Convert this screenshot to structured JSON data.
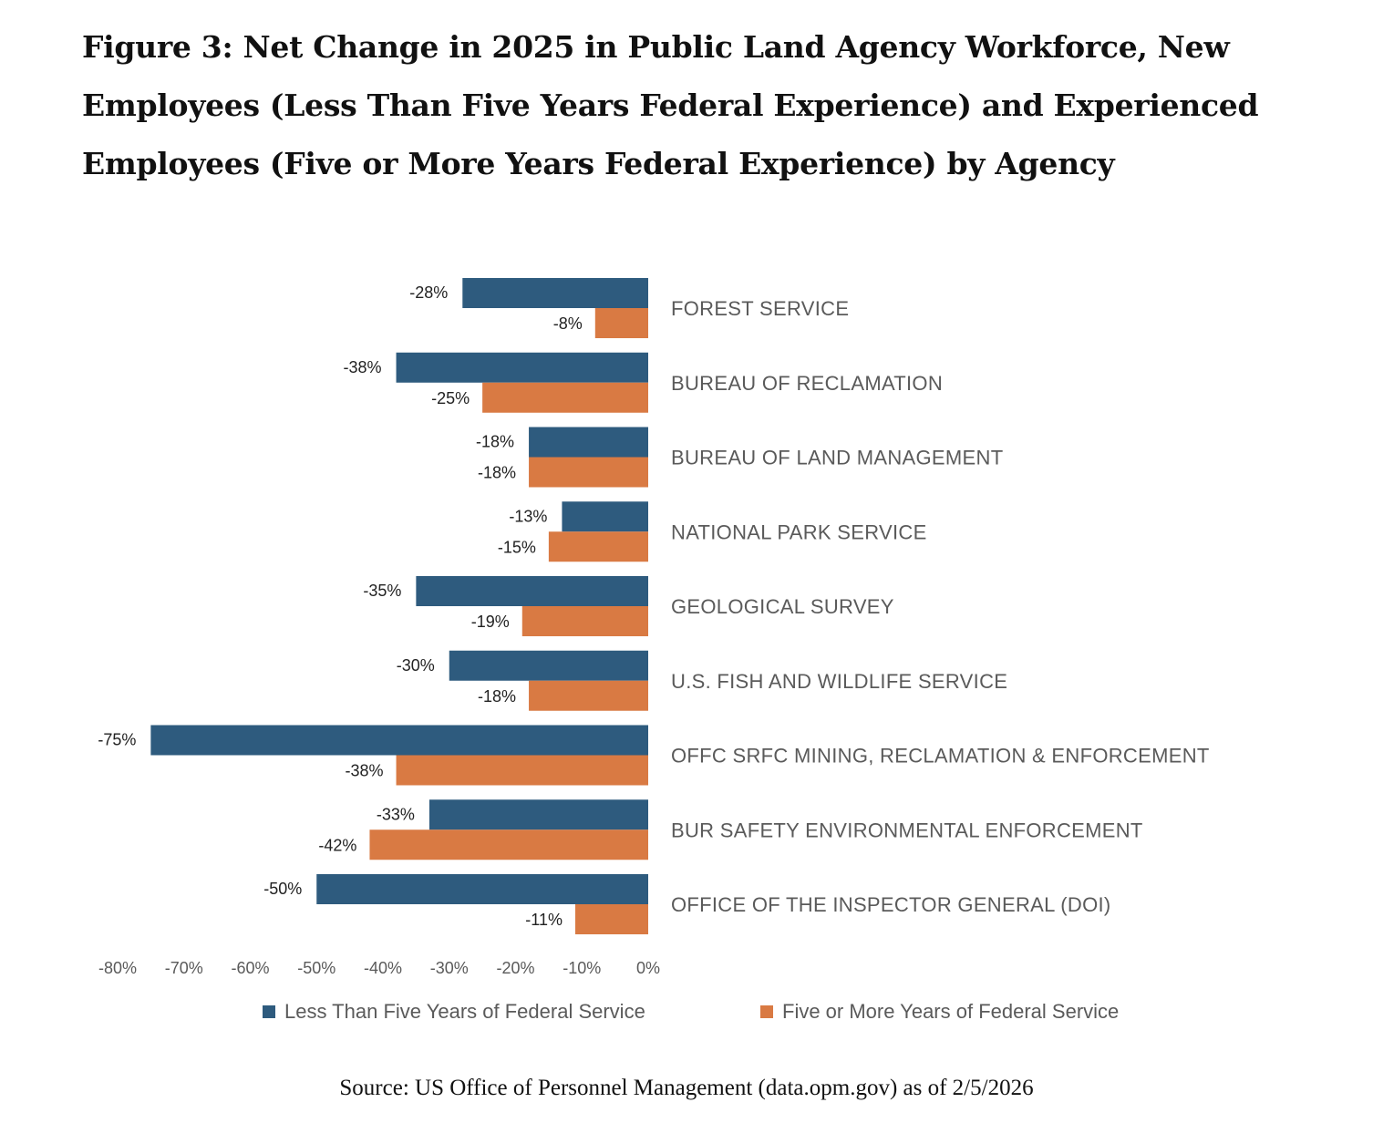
{
  "title": "Figure 3: Net Change in 2025 in Public Land Agency Workforce, New Employees (Less Than Five Years Federal Experience) and Experienced Employees (Five or More Years Federal Experience) by Agency",
  "source": "Source: US Office of Personnel Management (data.opm.gov) as of 2/5/2026",
  "colors": {
    "less_than_five": "#2e5b7e",
    "five_or_more": "#d97a43"
  },
  "chart_data": {
    "type": "bar",
    "orientation": "horizontal",
    "categories": [
      "FOREST SERVICE",
      "BUREAU OF RECLAMATION",
      "BUREAU OF LAND MANAGEMENT",
      "NATIONAL PARK SERVICE",
      "GEOLOGICAL SURVEY",
      "U.S. FISH AND WILDLIFE SERVICE",
      "OFFC  SRFC MINING, RECLAMATION & ENFORCEMENT",
      "BUR  SAFETY ENVIRONMENTAL ENFORCEMENT",
      "OFFICE OF THE INSPECTOR GENERAL (DOI)"
    ],
    "series": [
      {
        "name": "Less Than Five Years of Federal Service",
        "values": [
          -28,
          -38,
          -18,
          -13,
          -35,
          -30,
          -75,
          -33,
          -50
        ],
        "labels": [
          "-28%",
          "-38%",
          "-18%",
          "-13%",
          "-35%",
          "-30%",
          "-75%",
          "-33%",
          "-50%"
        ]
      },
      {
        "name": "Five or More Years of Federal Service",
        "values": [
          -8,
          -25,
          -18,
          -15,
          -19,
          -18,
          -38,
          -42,
          -11
        ],
        "labels": [
          "-8%",
          "-25%",
          "-18%",
          "-15%",
          "-19%",
          "-18%",
          "-38%",
          "-42%",
          "-11%"
        ]
      }
    ],
    "xlim": [
      -80,
      0
    ],
    "xticks": [
      -80,
      -70,
      -60,
      -50,
      -40,
      -30,
      -20,
      -10,
      0
    ],
    "xtick_labels": [
      "-80%",
      "-70%",
      "-60%",
      "-50%",
      "-40%",
      "-30%",
      "-20%",
      "-10%",
      "0%"
    ],
    "category_labels_position": "right",
    "legend_position": "bottom",
    "grid": false
  }
}
